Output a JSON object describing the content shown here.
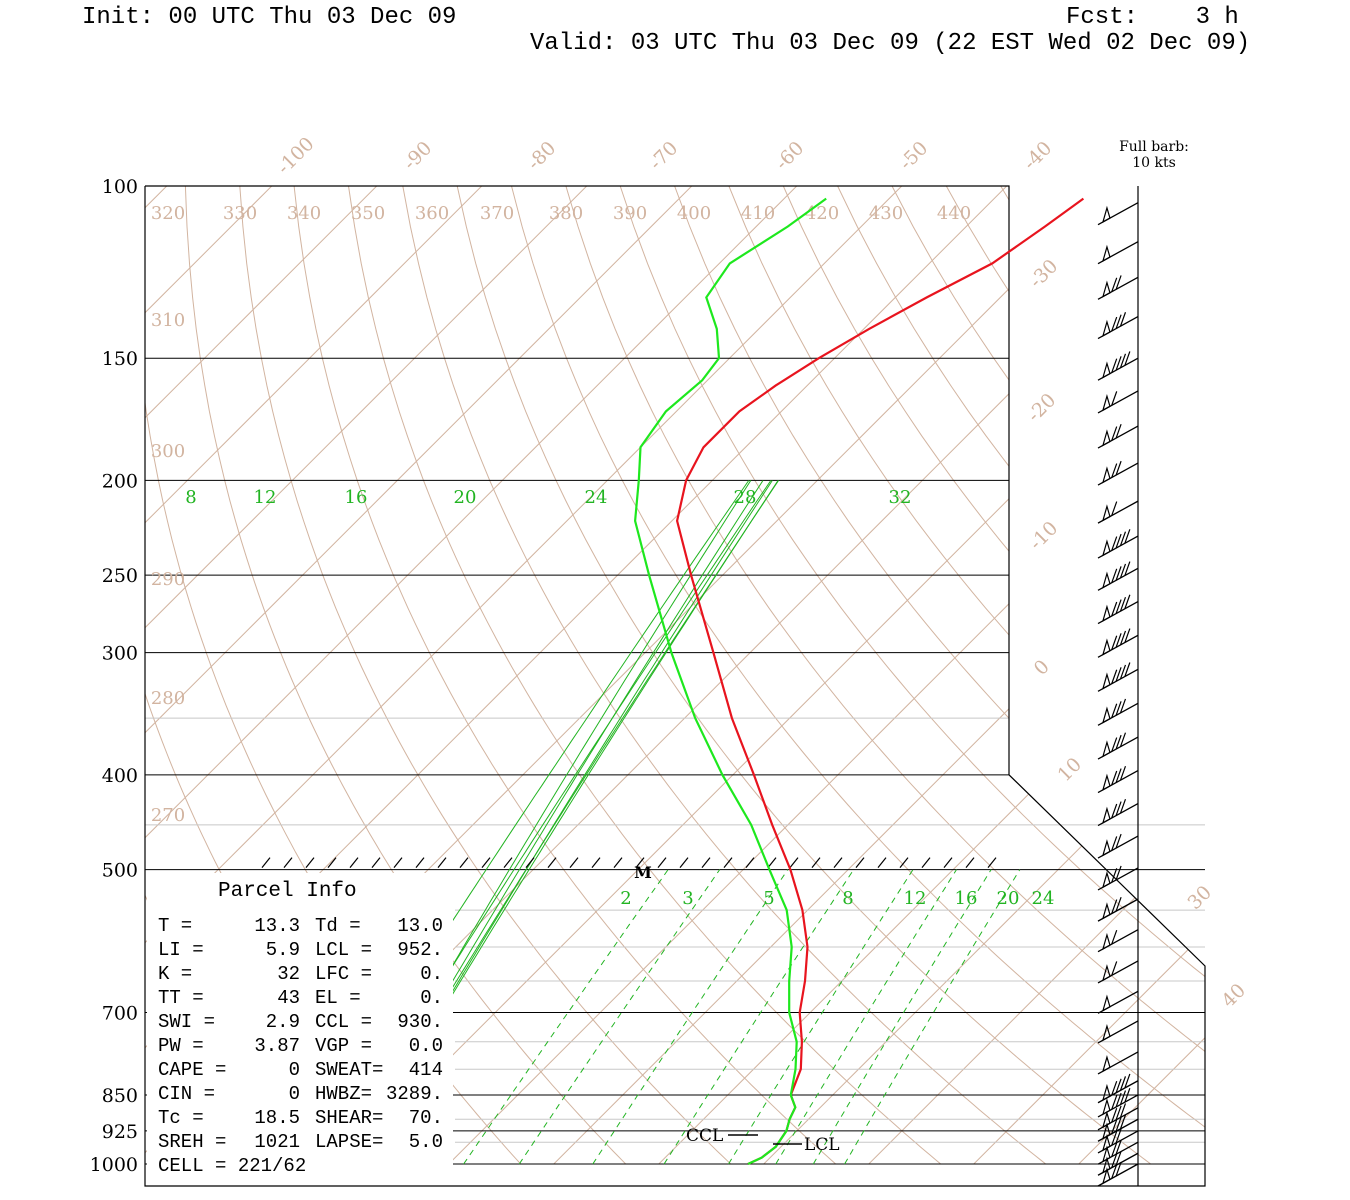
{
  "header": {
    "init": "Init: 00 UTC Thu 03 Dec 09",
    "fcst": "Fcst:    3 h",
    "valid": "Valid: 03 UTC Thu 03 Dec 09 (22 EST Wed 02 Dec 09)"
  },
  "barb_legend": {
    "line1": "Full barb:",
    "line2": "10 kts"
  },
  "colors": {
    "temperature": "#e8141e",
    "dewpoint": "#1ee81e",
    "mixing_ratio": "#22b422",
    "isotherm": "#d2b4a0",
    "frame": "#000000"
  },
  "chart_data": {
    "type": "line",
    "title": "",
    "ylabel": "",
    "xlabel": "",
    "y_axis_ticks": [
      100,
      150,
      200,
      250,
      300,
      400,
      500,
      700,
      850,
      925,
      1000
    ],
    "y_scale": "log-pressure (hPa)",
    "isotherm_labels_top": [
      "-100",
      "-90",
      "-80",
      "-70",
      "-60",
      "-50",
      "-40"
    ],
    "isotherm_labels_right": [
      "-30",
      "-20",
      "-10",
      "0",
      "10",
      "30",
      "40"
    ],
    "theta_labels_top": [
      "320",
      "330",
      "340",
      "350",
      "360",
      "370",
      "380",
      "390",
      "400",
      "410",
      "420",
      "430",
      "440"
    ],
    "theta_labels_left": [
      "310",
      "300",
      "290",
      "280",
      "270"
    ],
    "mixing_ratio_labels_upper": [
      "8",
      "12",
      "16",
      "20",
      "24",
      "28",
      "32"
    ],
    "mixing_ratio_labels_lower": [
      "2",
      "3",
      "5",
      "8",
      "12",
      "16",
      "20",
      "24"
    ],
    "series": [
      {
        "name": "Temperature",
        "color": "#e8141e",
        "points": [
          [
            1000,
            18.5
          ],
          [
            985,
            19.2
          ],
          [
            960,
            19.5
          ],
          [
            925,
            19.0
          ],
          [
            900,
            18.2
          ],
          [
            875,
            17.6
          ],
          [
            850,
            16.0
          ],
          [
            800,
            14.5
          ],
          [
            750,
            12.0
          ],
          [
            700,
            9.0
          ],
          [
            650,
            6.5
          ],
          [
            600,
            3.5
          ],
          [
            550,
            -0.5
          ],
          [
            500,
            -5.5
          ],
          [
            450,
            -11.5
          ],
          [
            400,
            -18.0
          ],
          [
            350,
            -25.5
          ],
          [
            300,
            -33.5
          ],
          [
            250,
            -43.0
          ],
          [
            220,
            -49.5
          ],
          [
            200,
            -52.5
          ],
          [
            185,
            -54.0
          ],
          [
            170,
            -54.0
          ],
          [
            160,
            -53.0
          ],
          [
            150,
            -51.5
          ],
          [
            140,
            -49.5
          ],
          [
            130,
            -47.0
          ],
          [
            120,
            -44.0
          ],
          [
            110,
            -42.5
          ],
          [
            103,
            -41.5
          ]
        ]
      },
      {
        "name": "Dewpoint",
        "color": "#1ee81e",
        "points": [
          [
            1000,
            18.5
          ],
          [
            985,
            19.2
          ],
          [
            960,
            19.5
          ],
          [
            925,
            19.0
          ],
          [
            900,
            18.2
          ],
          [
            875,
            17.6
          ],
          [
            850,
            16.0
          ],
          [
            800,
            14.0
          ],
          [
            750,
            11.5
          ],
          [
            700,
            8.0
          ],
          [
            650,
            5.0
          ],
          [
            600,
            2.0
          ],
          [
            550,
            -2.0
          ],
          [
            500,
            -7.5
          ],
          [
            450,
            -13.5
          ],
          [
            400,
            -21.0
          ],
          [
            350,
            -29.0
          ],
          [
            300,
            -37.5
          ],
          [
            250,
            -47.0
          ],
          [
            220,
            -53.5
          ],
          [
            200,
            -57.0
          ],
          [
            185,
            -60.0
          ],
          [
            170,
            -61.0
          ],
          [
            158,
            -60.5
          ],
          [
            150,
            -61.0
          ],
          [
            140,
            -64.0
          ],
          [
            130,
            -68.0
          ],
          [
            120,
            -69.0
          ],
          [
            110,
            -67.0
          ],
          [
            103,
            -66.0
          ]
        ]
      }
    ],
    "markers": {
      "M": "M",
      "CCL": "CCL",
      "LCL": "LCL"
    }
  },
  "parcel": {
    "title": "Parcel Info",
    "rows": [
      [
        "T  =",
        "13.3",
        "Td =",
        "13.0"
      ],
      [
        "LI =",
        "5.9",
        "LCL =",
        "952."
      ],
      [
        "K  =",
        "32",
        "LFC =",
        "0."
      ],
      [
        "TT =",
        "43",
        "EL  =",
        "0."
      ],
      [
        "SWI =",
        "2.9",
        "CCL =",
        "930."
      ],
      [
        "PW =",
        "3.87",
        "VGP =",
        "0.0"
      ],
      [
        "CAPE =",
        "0",
        "SWEAT=",
        "414"
      ],
      [
        "CIN =",
        "0",
        "HWBZ=",
        "3289."
      ],
      [
        "Tc =",
        "18.5",
        "SHEAR=",
        "70."
      ],
      [
        "SREH =",
        "1021",
        "LAPSE=",
        "5.0"
      ],
      [
        "CELL = 221/62",
        "",
        "",
        ""
      ]
    ]
  },
  "wind_barbs": [
    {
      "p": 104,
      "flags": 1,
      "full": 0,
      "half": 0
    },
    {
      "p": 114,
      "flags": 1,
      "full": 0,
      "half": 0
    },
    {
      "p": 124,
      "flags": 1,
      "full": 2,
      "half": 0
    },
    {
      "p": 136,
      "flags": 1,
      "full": 3,
      "half": 0
    },
    {
      "p": 150,
      "flags": 1,
      "full": 4,
      "half": 0
    },
    {
      "p": 162,
      "flags": 1,
      "full": 1,
      "half": 0
    },
    {
      "p": 176,
      "flags": 1,
      "full": 2,
      "half": 0
    },
    {
      "p": 192,
      "flags": 1,
      "full": 2,
      "half": 0
    },
    {
      "p": 210,
      "flags": 1,
      "full": 1,
      "half": 0
    },
    {
      "p": 228,
      "flags": 1,
      "full": 4,
      "half": 0
    },
    {
      "p": 246,
      "flags": 1,
      "full": 4,
      "half": 0
    },
    {
      "p": 266,
      "flags": 1,
      "full": 4,
      "half": 0
    },
    {
      "p": 288,
      "flags": 1,
      "full": 4,
      "half": 0
    },
    {
      "p": 312,
      "flags": 1,
      "full": 4,
      "half": 0
    },
    {
      "p": 338,
      "flags": 1,
      "full": 3,
      "half": 0
    },
    {
      "p": 366,
      "flags": 1,
      "full": 3,
      "half": 0
    },
    {
      "p": 396,
      "flags": 1,
      "full": 3,
      "half": 0
    },
    {
      "p": 428,
      "flags": 1,
      "full": 3,
      "half": 0
    },
    {
      "p": 462,
      "flags": 1,
      "full": 2,
      "half": 0
    },
    {
      "p": 498,
      "flags": 1,
      "full": 2,
      "half": 0
    },
    {
      "p": 536,
      "flags": 1,
      "full": 2,
      "half": 0
    },
    {
      "p": 576,
      "flags": 1,
      "full": 1,
      "half": 0
    },
    {
      "p": 620,
      "flags": 1,
      "full": 1,
      "half": 0
    },
    {
      "p": 666,
      "flags": 1,
      "full": 0,
      "half": 0
    },
    {
      "p": 714,
      "flags": 1,
      "full": 0,
      "half": 0
    },
    {
      "p": 768,
      "flags": 1,
      "full": 0,
      "half": 0
    },
    {
      "p": 822,
      "flags": 1,
      "full": 4,
      "half": 0
    },
    {
      "p": 850,
      "flags": 1,
      "full": 4,
      "half": 0
    },
    {
      "p": 876,
      "flags": 1,
      "full": 3,
      "half": 0
    },
    {
      "p": 900,
      "flags": 1,
      "full": 3,
      "half": 0
    },
    {
      "p": 925,
      "flags": 1,
      "full": 2,
      "half": 0
    },
    {
      "p": 950,
      "flags": 1,
      "full": 2,
      "half": 0
    },
    {
      "p": 975,
      "flags": 1,
      "full": 2,
      "half": 0
    },
    {
      "p": 1000,
      "flags": 1,
      "full": 2,
      "half": 0
    }
  ]
}
